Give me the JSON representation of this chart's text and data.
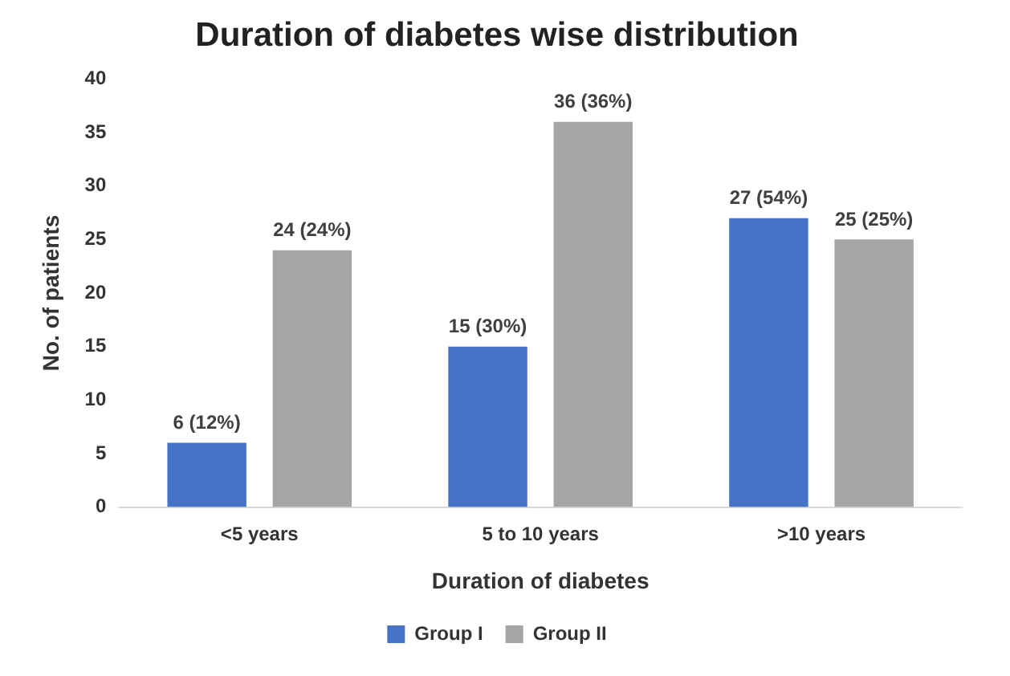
{
  "chart_data": {
    "type": "bar",
    "title": "Duration of diabetes wise distribution",
    "xlabel": "Duration of diabetes",
    "ylabel": "No. of patients",
    "categories": [
      "<5 years",
      "5 to 10 years",
      ">10 years"
    ],
    "series": [
      {
        "name": "Group I",
        "color": "#4472c4",
        "values": [
          6,
          15,
          27
        ],
        "value_labels": [
          "6 (12%)",
          "15 (30%)",
          "27 (54%)"
        ]
      },
      {
        "name": "Group II",
        "color": "#a5a5a5",
        "values": [
          24,
          36,
          25
        ],
        "value_labels": [
          "24 (24%)",
          "36 (36%)",
          "25 (25%)"
        ]
      }
    ],
    "ylim": [
      0,
      40
    ],
    "yticks": [
      0,
      5,
      10,
      15,
      20,
      25,
      30,
      35,
      40
    ],
    "grid": false,
    "legend": "bottom"
  }
}
